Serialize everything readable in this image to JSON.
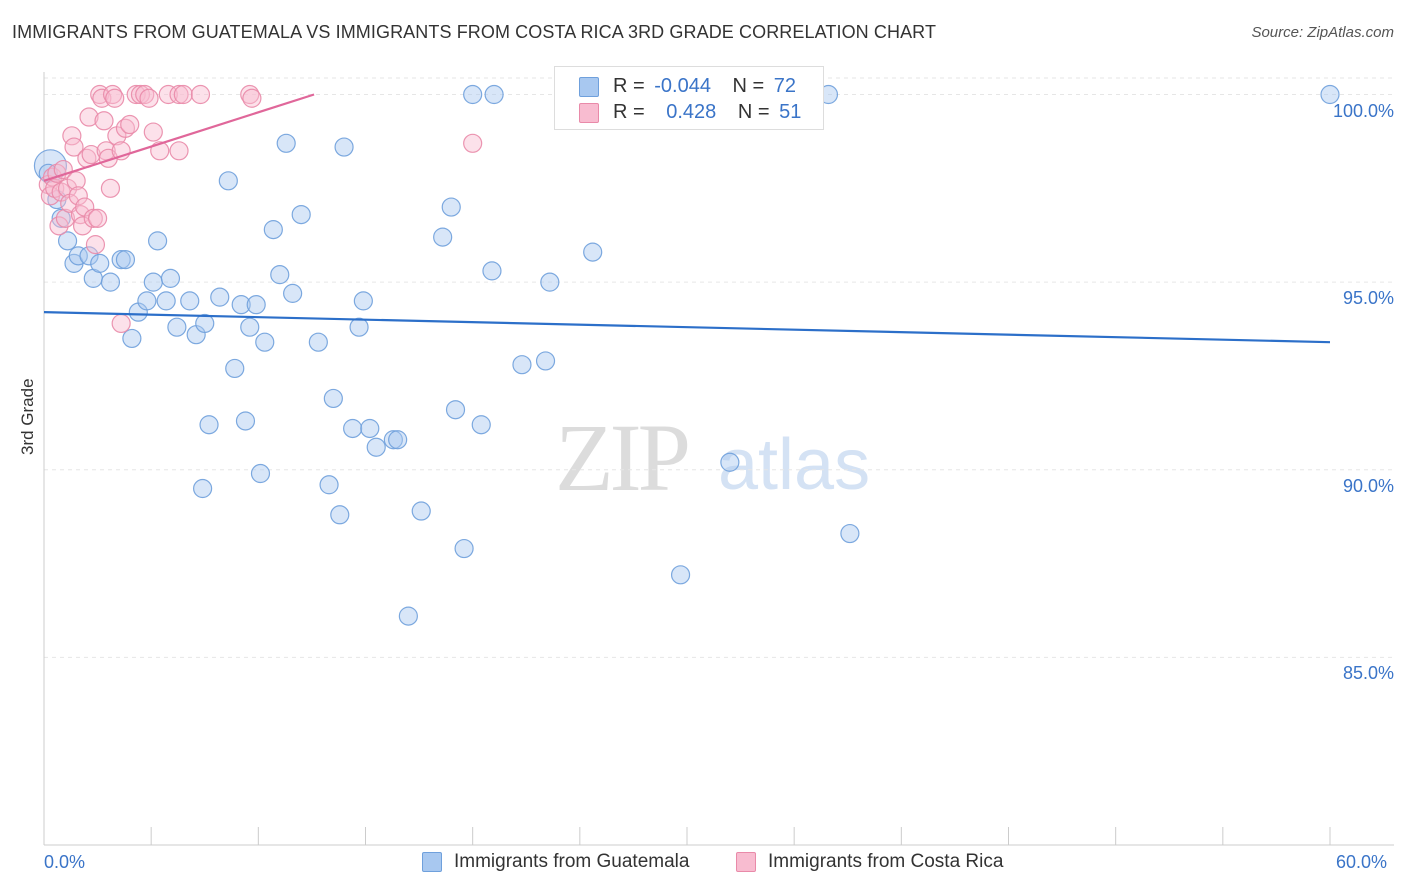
{
  "header": {
    "title": "IMMIGRANTS FROM GUATEMALA VS IMMIGRANTS FROM COSTA RICA 3RD GRADE CORRELATION CHART",
    "source": "Source: ZipAtlas.com"
  },
  "watermark": {
    "zip": "ZIP",
    "atlas": "atlas"
  },
  "legend": {
    "rows": [
      {
        "r_label": "R =",
        "r_value": "-0.044",
        "n_label": "N =",
        "n_value": "72",
        "color": "#a8c8f0",
        "border": "#6fa0dc"
      },
      {
        "r_label": "R =",
        "r_value": "0.428",
        "n_label": "N =",
        "n_value": "51",
        "color": "#f8bcd0",
        "border": "#e98aa9"
      }
    ]
  },
  "bottom_legend": {
    "items": [
      {
        "label": "Immigrants from Guatemala",
        "color": "#a8c8f0",
        "border": "#6fa0dc"
      },
      {
        "label": "Immigrants from Costa Rica",
        "color": "#f8bcd0",
        "border": "#e98aa9"
      }
    ]
  },
  "chart_data": {
    "type": "scatter",
    "title": "IMMIGRANTS FROM GUATEMALA VS IMMIGRANTS FROM COSTA RICA 3RD GRADE CORRELATION CHART",
    "xlabel": "",
    "ylabel": "3rd Grade",
    "xlim": [
      0,
      60
    ],
    "ylim": [
      80,
      100.6
    ],
    "x_tick_labels": [
      "0.0%",
      "60.0%"
    ],
    "y_ticks": [
      85,
      90,
      95,
      100
    ],
    "y_tick_labels": [
      "85.0%",
      "90.0%",
      "95.0%",
      "100.0%"
    ],
    "grid": true,
    "legend_position": "top-center",
    "series": [
      {
        "name": "Immigrants from Guatemala",
        "color": "#6fa0dc",
        "fill": "#a8c8f0",
        "trend": {
          "x": [
            0,
            60
          ],
          "y": [
            94.2,
            93.4
          ]
        },
        "points": [
          [
            0.3,
            98.1
          ],
          [
            0.6,
            97.2
          ],
          [
            0.8,
            96.7
          ],
          [
            1.1,
            96.1
          ],
          [
            1.4,
            95.5
          ],
          [
            1.6,
            95.7
          ],
          [
            2.1,
            95.7
          ],
          [
            2.3,
            95.1
          ],
          [
            2.6,
            95.5
          ],
          [
            3.1,
            95.0
          ],
          [
            3.6,
            95.6
          ],
          [
            3.8,
            95.6
          ],
          [
            4.1,
            93.5
          ],
          [
            4.4,
            94.2
          ],
          [
            4.8,
            94.5
          ],
          [
            5.1,
            95.0
          ],
          [
            5.3,
            96.1
          ],
          [
            5.7,
            94.5
          ],
          [
            5.9,
            95.1
          ],
          [
            6.2,
            93.8
          ],
          [
            6.8,
            94.5
          ],
          [
            7.1,
            93.6
          ],
          [
            7.5,
            93.9
          ],
          [
            7.7,
            91.2
          ],
          [
            7.4,
            89.5
          ],
          [
            8.2,
            94.6
          ],
          [
            8.6,
            97.7
          ],
          [
            8.9,
            92.7
          ],
          [
            9.2,
            94.4
          ],
          [
            9.4,
            91.3
          ],
          [
            9.6,
            93.8
          ],
          [
            9.9,
            94.4
          ],
          [
            10.1,
            89.9
          ],
          [
            10.3,
            93.4
          ],
          [
            10.7,
            96.4
          ],
          [
            11.0,
            95.2
          ],
          [
            11.3,
            98.7
          ],
          [
            11.6,
            94.7
          ],
          [
            12.0,
            96.8
          ],
          [
            12.8,
            93.4
          ],
          [
            13.3,
            89.6
          ],
          [
            13.5,
            91.9
          ],
          [
            13.8,
            88.8
          ],
          [
            14.0,
            98.6
          ],
          [
            14.4,
            91.1
          ],
          [
            14.7,
            93.8
          ],
          [
            14.9,
            94.5
          ],
          [
            15.2,
            91.1
          ],
          [
            15.5,
            90.6
          ],
          [
            16.3,
            90.8
          ],
          [
            16.5,
            90.8
          ],
          [
            17.0,
            86.1
          ],
          [
            17.6,
            88.9
          ],
          [
            18.6,
            96.2
          ],
          [
            19.0,
            97.0
          ],
          [
            19.2,
            91.6
          ],
          [
            19.6,
            87.9
          ],
          [
            20.0,
            100.0
          ],
          [
            20.4,
            91.2
          ],
          [
            20.9,
            95.3
          ],
          [
            21.0,
            100.0
          ],
          [
            22.3,
            92.8
          ],
          [
            23.4,
            92.9
          ],
          [
            23.6,
            95.0
          ],
          [
            25.6,
            95.8
          ],
          [
            29.7,
            87.2
          ],
          [
            32.0,
            90.2
          ],
          [
            33.0,
            100.0
          ],
          [
            36.6,
            100.0
          ],
          [
            37.6,
            88.3
          ],
          [
            60.0,
            100.0
          ],
          [
            0.2,
            97.9
          ]
        ]
      },
      {
        "name": "Immigrants from Costa Rica",
        "color": "#e98aa9",
        "fill": "#f8bcd0",
        "trend": {
          "x": [
            0,
            12.6
          ],
          "y": [
            97.7,
            100.0
          ]
        },
        "points": [
          [
            0.2,
            97.6
          ],
          [
            0.3,
            97.3
          ],
          [
            0.4,
            97.8
          ],
          [
            0.5,
            97.5
          ],
          [
            0.6,
            97.9
          ],
          [
            0.7,
            96.5
          ],
          [
            0.8,
            97.4
          ],
          [
            0.9,
            98.0
          ],
          [
            1.0,
            96.7
          ],
          [
            1.1,
            97.5
          ],
          [
            1.2,
            97.1
          ],
          [
            1.3,
            98.9
          ],
          [
            1.4,
            98.6
          ],
          [
            1.5,
            97.7
          ],
          [
            1.6,
            97.3
          ],
          [
            1.7,
            96.8
          ],
          [
            1.8,
            96.5
          ],
          [
            1.9,
            97.0
          ],
          [
            2.0,
            98.3
          ],
          [
            2.1,
            99.4
          ],
          [
            2.2,
            98.4
          ],
          [
            2.3,
            96.7
          ],
          [
            2.4,
            96.0
          ],
          [
            2.5,
            96.7
          ],
          [
            2.6,
            100.0
          ],
          [
            2.7,
            99.9
          ],
          [
            2.8,
            99.3
          ],
          [
            2.9,
            98.5
          ],
          [
            3.0,
            98.3
          ],
          [
            3.1,
            97.5
          ],
          [
            3.2,
            100.0
          ],
          [
            3.3,
            99.9
          ],
          [
            3.4,
            98.9
          ],
          [
            3.6,
            93.9
          ],
          [
            3.6,
            98.5
          ],
          [
            3.8,
            99.1
          ],
          [
            4.0,
            99.2
          ],
          [
            4.3,
            100.0
          ],
          [
            4.5,
            100.0
          ],
          [
            4.7,
            100.0
          ],
          [
            4.9,
            99.9
          ],
          [
            5.1,
            99.0
          ],
          [
            5.4,
            98.5
          ],
          [
            5.8,
            100.0
          ],
          [
            6.3,
            100.0
          ],
          [
            6.5,
            100.0
          ],
          [
            6.3,
            98.5
          ],
          [
            7.3,
            100.0
          ],
          [
            9.6,
            100.0
          ],
          [
            9.7,
            99.9
          ],
          [
            20.0,
            98.7
          ]
        ]
      }
    ]
  }
}
